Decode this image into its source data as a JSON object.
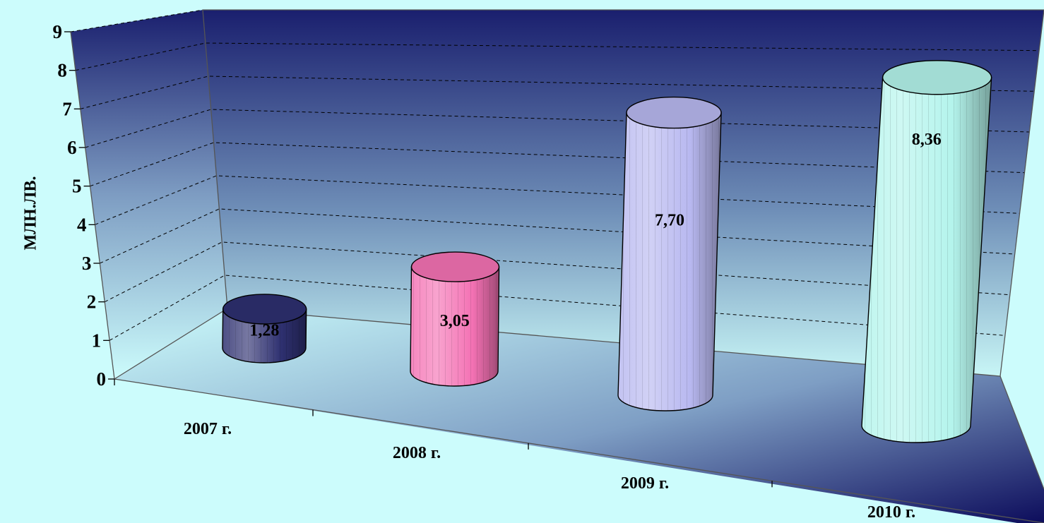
{
  "chart_data": {
    "type": "bar",
    "style": "3d-cylinder",
    "categories": [
      "2007 г.",
      "2008 г.",
      "2009 г.",
      "2010 г."
    ],
    "values": [
      1.28,
      3.05,
      7.7,
      8.36
    ],
    "value_labels": [
      "1,28",
      "3,05",
      "7,70",
      "8,36"
    ],
    "ylabel": "МЛН.ЛВ.",
    "ylim": [
      0,
      9
    ],
    "yticks": [
      0,
      1,
      2,
      3,
      4,
      5,
      6,
      7,
      8,
      9
    ],
    "grid": true,
    "colors": {
      "background": "#ccfcfc",
      "wall_top": "#1a1f6e",
      "wall_bottom": "#ccfcfc",
      "bars": [
        "#2e3070",
        "#f472b4",
        "#b8b8f0",
        "#b4f4ec"
      ]
    }
  }
}
